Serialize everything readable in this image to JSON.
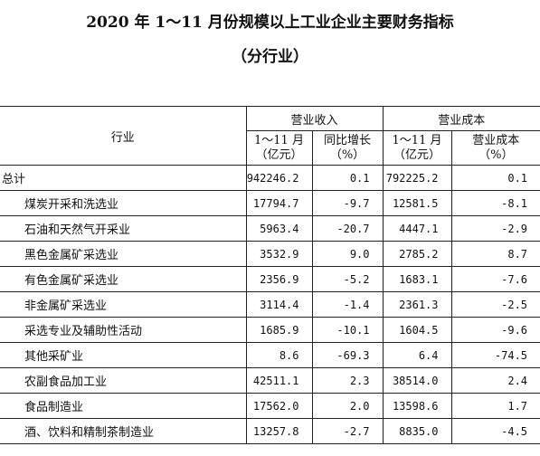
{
  "title": "2020 年 1～11 月份规模以上工业企业主要财务指标",
  "subtitle": "（分行业）",
  "headers": {
    "industry": "行业",
    "revenue_group": "营业收入",
    "cost_group": "营业成本",
    "rev_value_line1": "1～11 月",
    "rev_value_line2": "（亿元）",
    "rev_growth_line1": "同比增长",
    "rev_growth_line2": "（%）",
    "cost_value_line1": "1～11 月",
    "cost_value_line2": "（亿元）",
    "cost_growth_line1": "营业成本",
    "cost_growth_line2": "（%）"
  },
  "rows": [
    {
      "name": "总计",
      "level": 0,
      "rev": "942246.2",
      "rev_growth": "0.1",
      "cost": "792225.2",
      "cost_growth": "0.1"
    },
    {
      "name": "煤炭开采和洗选业",
      "level": 1,
      "rev": "17794.7",
      "rev_growth": "-9.7",
      "cost": "12581.5",
      "cost_growth": "-8.1"
    },
    {
      "name": "石油和天然气开采业",
      "level": 1,
      "rev": "5963.4",
      "rev_growth": "-20.7",
      "cost": "4447.1",
      "cost_growth": "-2.9"
    },
    {
      "name": "黑色金属矿采选业",
      "level": 1,
      "rev": "3532.9",
      "rev_growth": "9.0",
      "cost": "2785.2",
      "cost_growth": "8.7"
    },
    {
      "name": "有色金属矿采选业",
      "level": 1,
      "rev": "2356.9",
      "rev_growth": "-5.2",
      "cost": "1683.1",
      "cost_growth": "-7.6"
    },
    {
      "name": "非金属矿采选业",
      "level": 1,
      "rev": "3114.4",
      "rev_growth": "-1.4",
      "cost": "2361.3",
      "cost_growth": "-2.5"
    },
    {
      "name": "采选专业及辅助性活动",
      "level": 1,
      "rev": "1685.9",
      "rev_growth": "-10.1",
      "cost": "1604.5",
      "cost_growth": "-9.6"
    },
    {
      "name": "其他采矿业",
      "level": 1,
      "rev": "8.6",
      "rev_growth": "-69.3",
      "cost": "6.4",
      "cost_growth": "-74.5"
    },
    {
      "name": "农副食品加工业",
      "level": 1,
      "rev": "42511.1",
      "rev_growth": "2.3",
      "cost": "38514.0",
      "cost_growth": "2.4"
    },
    {
      "name": "食品制造业",
      "level": 1,
      "rev": "17562.0",
      "rev_growth": "2.0",
      "cost": "13598.6",
      "cost_growth": "1.7"
    },
    {
      "name": "酒、饮料和精制茶制造业",
      "level": 1,
      "rev": "13257.8",
      "rev_growth": "-2.7",
      "cost": "8835.0",
      "cost_growth": "-4.5"
    }
  ]
}
